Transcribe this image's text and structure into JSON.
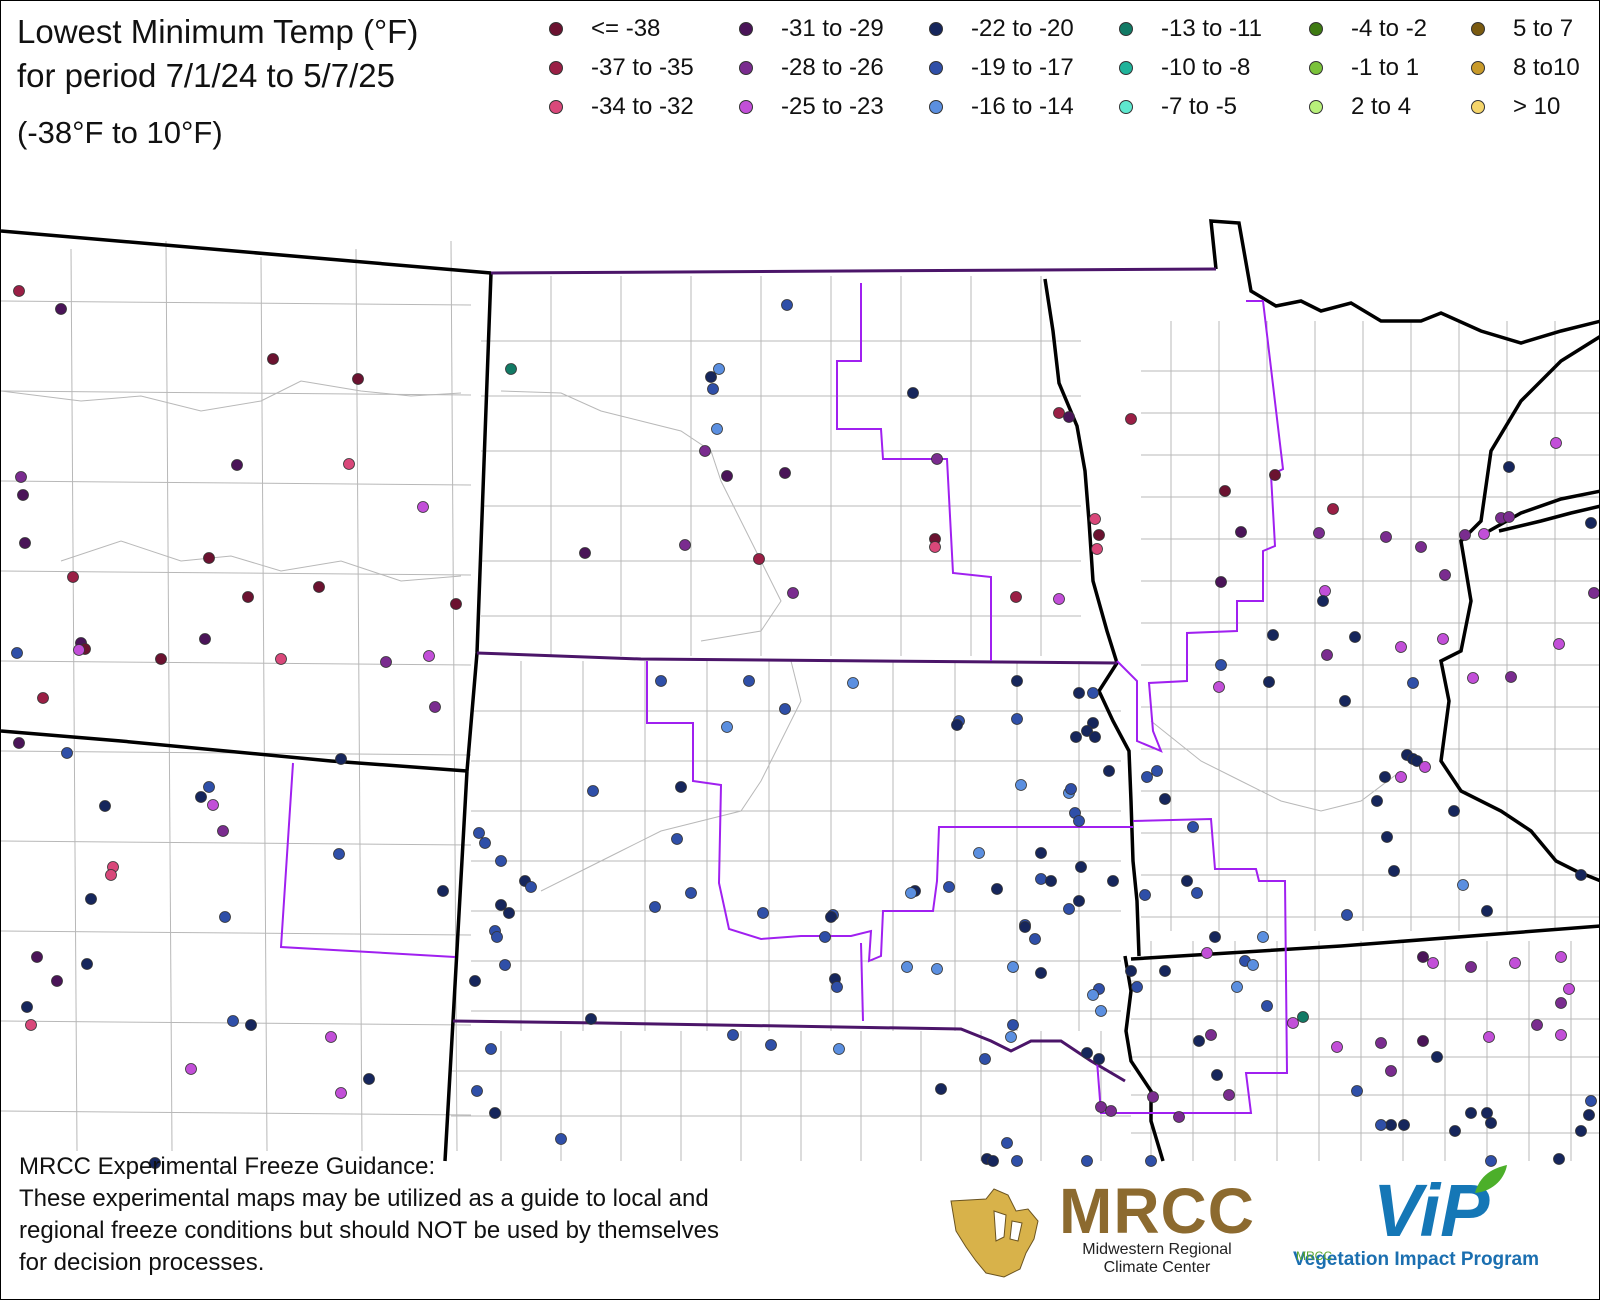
{
  "title": {
    "line1": "Lowest Minimum Temp (°F)",
    "line2": "for period 7/1/24 to 5/7/25",
    "range": "(-38°F to 10°F)"
  },
  "legend": [
    {
      "label": "<= -38",
      "color": "#6b1230"
    },
    {
      "label": "-37 to -35",
      "color": "#9a1f45"
    },
    {
      "label": "-34 to -32",
      "color": "#d9487a"
    },
    {
      "label": "-31 to -29",
      "color": "#4a1458"
    },
    {
      "label": "-28 to -26",
      "color": "#7a2c8f"
    },
    {
      "label": "-25 to -23",
      "color": "#c24fd8"
    },
    {
      "label": "-22 to -20",
      "color": "#16265c"
    },
    {
      "label": "-19 to -17",
      "color": "#2f4fa8"
    },
    {
      "label": "-16 to -14",
      "color": "#5b8fe0"
    },
    {
      "label": "-13 to -11",
      "color": "#127a65"
    },
    {
      "label": "-10 to -8",
      "color": "#1fb39a"
    },
    {
      "label": "-7 to -5",
      "color": "#5ee8cf"
    },
    {
      "label": "-4 to -2",
      "color": "#3e7a12"
    },
    {
      "label": "-1 to 1",
      "color": "#7ac23a"
    },
    {
      "label": "2 to 4",
      "color": "#b8f07a"
    },
    {
      "label": "5 to 7",
      "color": "#7a5a10"
    },
    {
      "label": "8 to10",
      "color": "#c89a2a"
    },
    {
      "label": "> 10",
      "color": "#f5d56a"
    }
  ],
  "footer": {
    "line1": "MRCC Experimental Freeze Guidance:",
    "line2": "These experimental maps may be utilized as a guide to local and",
    "line3": "regional freeze conditions but should NOT be used by themselves",
    "line4": "for decision processes."
  },
  "logos": {
    "mrcc": "MRCC",
    "mrcc_sub1": "Midwestern Regional",
    "mrcc_sub2": "Climate Center",
    "vip": "ViP",
    "vip_small": "MRCC",
    "vip_sub": "Vegetation Impact Program"
  },
  "colors": {
    "state_border": "#000000",
    "region_border": "#5a1a7a",
    "highlight_border": "#a020f0",
    "county_line": "#b0b0b0"
  },
  "stations": {
    "cat": [
      1,
      3,
      0,
      0,
      4,
      3,
      3,
      2,
      5,
      3,
      1,
      0,
      0,
      0,
      0,
      3,
      0,
      5,
      0,
      3,
      2,
      4,
      5,
      7,
      1,
      4,
      3,
      7,
      6,
      6,
      7,
      6,
      5,
      4,
      7,
      7,
      6,
      2,
      2,
      6,
      3,
      6,
      3,
      6,
      2,
      7,
      6,
      5,
      5,
      6,
      5,
      6,
      7,
      6,
      8,
      7,
      6,
      9,
      8,
      4,
      3,
      3,
      3,
      4,
      1,
      4,
      4,
      0,
      2,
      1,
      5,
      1,
      3,
      1,
      2,
      0,
      2,
      0,
      3,
      3,
      0,
      1,
      4,
      5,
      6,
      4,
      4,
      4,
      4,
      5,
      4,
      4,
      5,
      6,
      6,
      4,
      5,
      5,
      4,
      5,
      4,
      5,
      6,
      6,
      6,
      5,
      5,
      6,
      6,
      7,
      6,
      7,
      5,
      6,
      6,
      6,
      6,
      6,
      6,
      8,
      6,
      6,
      7,
      6,
      7,
      6,
      7,
      7,
      7,
      6,
      6,
      7,
      6,
      7,
      6,
      6,
      6,
      6,
      8,
      7,
      7,
      6,
      6,
      7,
      7,
      7,
      7,
      6,
      6,
      6,
      7,
      6,
      5,
      7,
      8,
      8,
      8,
      7,
      9,
      5,
      6,
      6,
      4,
      4,
      4,
      4,
      4,
      4,
      3,
      5,
      4,
      5,
      5,
      5,
      4,
      4,
      5,
      5,
      3,
      4,
      4,
      5,
      6,
      6,
      6,
      6,
      6,
      6,
      7,
      7,
      6,
      6,
      7,
      6,
      7,
      6,
      6,
      7,
      7,
      7,
      8,
      8,
      7,
      6,
      8,
      7,
      7,
      8,
      6,
      6,
      6,
      6,
      6,
      7,
      7,
      7,
      7,
      7,
      7,
      6,
      7,
      6,
      7,
      8,
      8,
      8,
      8,
      6,
      7,
      8,
      8,
      7,
      7,
      8,
      6,
      6,
      6,
      7,
      7,
      7,
      6,
      6,
      7,
      8,
      7,
      7,
      7,
      6,
      7,
      6,
      6,
      7,
      7,
      7,
      7,
      6,
      7,
      6,
      7,
      6,
      6,
      7,
      7,
      7,
      7,
      7,
      8,
      6,
      6,
      6,
      7,
      6,
      7,
      7,
      8,
      8,
      8,
      6,
      7,
      6,
      7,
      7,
      8,
      7,
      9,
      7,
      6,
      7,
      6,
      5
    ]
  }
}
